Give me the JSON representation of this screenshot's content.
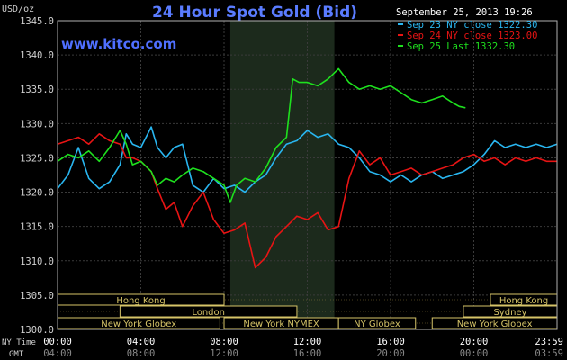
{
  "chart_data": {
    "type": "line",
    "title": "24 Hour Spot Gold (Bid)",
    "subtitle": "www.kitco.com",
    "ylabel": "USD/oz",
    "timestamp": "September 25, 2013 19:26",
    "ylim": [
      1300,
      1345
    ],
    "yticks": [
      "1300.0",
      "1305.0",
      "1310.0",
      "1315.0",
      "1320.0",
      "1325.0",
      "1330.0",
      "1335.0",
      "1340.0",
      "1345.0"
    ],
    "xlim": [
      0,
      24
    ],
    "xrow1_label": "NY Time",
    "xrow2_label": "GMT",
    "xticks_ny": [
      "00:00",
      "04:00",
      "08:00",
      "12:00",
      "16:00",
      "20:00",
      "23:59"
    ],
    "xticks_gmt": [
      "04:00",
      "08:00",
      "12:00",
      "16:00",
      "20:00",
      "00:00",
      "03:59"
    ],
    "highlight_band": [
      8.3,
      13.3
    ],
    "series": [
      {
        "name": "Sep 23 NY close 1322.30",
        "color": "#29b6f0",
        "x": [
          0,
          0.5,
          1,
          1.5,
          2,
          2.5,
          3,
          3.3,
          3.6,
          4,
          4.5,
          4.8,
          5.2,
          5.6,
          6,
          6.5,
          7,
          7.5,
          8,
          8.5,
          9,
          9.5,
          10,
          10.5,
          11,
          11.5,
          12,
          12.5,
          13,
          13.5,
          14,
          14.5,
          15,
          15.5,
          16,
          16.5,
          17,
          17.5,
          18,
          18.5,
          19,
          19.5,
          20,
          20.5,
          21,
          21.5,
          22,
          22.5,
          23,
          23.5,
          24
        ],
        "y": [
          1320.5,
          1322.5,
          1326.5,
          1322.0,
          1320.5,
          1321.5,
          1324.0,
          1328.5,
          1327.0,
          1326.5,
          1329.5,
          1326.5,
          1325.0,
          1326.5,
          1327.0,
          1321.0,
          1320.0,
          1322.0,
          1320.5,
          1321.0,
          1320.0,
          1321.5,
          1322.5,
          1325.0,
          1327.0,
          1327.5,
          1329.0,
          1328.0,
          1328.5,
          1327.0,
          1326.5,
          1325.0,
          1323.0,
          1322.5,
          1321.5,
          1322.5,
          1321.5,
          1322.5,
          1323.0,
          1322.0,
          1322.5,
          1323.0,
          1324.0,
          1325.5,
          1327.5,
          1326.5,
          1327.0,
          1326.5,
          1327.0,
          1326.5,
          1327.0
        ]
      },
      {
        "name": "Sep 24 NY close 1323.00",
        "color": "#e81414",
        "x": [
          0,
          0.5,
          1,
          1.5,
          2,
          2.5,
          3,
          3.3,
          3.6,
          4,
          4.5,
          4.8,
          5.2,
          5.6,
          6,
          6.5,
          7,
          7.5,
          8,
          8.5,
          9,
          9.5,
          10,
          10.5,
          11,
          11.5,
          12,
          12.5,
          13,
          13.5,
          14,
          14.5,
          15,
          15.5,
          16,
          16.5,
          17,
          17.5,
          18,
          18.5,
          19,
          19.5,
          20,
          20.5,
          21,
          21.5,
          22,
          22.5,
          23,
          23.5,
          24
        ],
        "y": [
          1327.0,
          1327.5,
          1328.0,
          1327.0,
          1328.5,
          1327.5,
          1327.0,
          1325.0,
          1325.0,
          1324.5,
          1323.0,
          1320.5,
          1317.5,
          1318.5,
          1315.0,
          1318.0,
          1320.0,
          1316.0,
          1314.0,
          1314.5,
          1315.5,
          1309.0,
          1310.5,
          1313.5,
          1315.0,
          1316.5,
          1316.0,
          1317.0,
          1314.5,
          1315.0,
          1322.0,
          1326.0,
          1324.0,
          1325.0,
          1322.5,
          1323.0,
          1323.5,
          1322.5,
          1323.0,
          1323.5,
          1324.0,
          1325.0,
          1325.5,
          1324.5,
          1325.0,
          1324.0,
          1325.0,
          1324.5,
          1325.0,
          1324.5,
          1324.5
        ]
      },
      {
        "name": "Sep 25 Last 1332.30",
        "color": "#1ee01e",
        "x": [
          0,
          0.5,
          1,
          1.5,
          2,
          2.5,
          3,
          3.3,
          3.6,
          4,
          4.5,
          4.8,
          5.2,
          5.6,
          6,
          6.5,
          7,
          7.5,
          8,
          8.3,
          8.6,
          9,
          9.5,
          10,
          10.5,
          11,
          11.3,
          11.6,
          12,
          12.5,
          13,
          13.5,
          14,
          14.5,
          15,
          15.5,
          16,
          16.5,
          17,
          17.5,
          18,
          18.5,
          19,
          19.3,
          19.6
        ],
        "y": [
          1324.5,
          1325.5,
          1325.0,
          1326.0,
          1324.5,
          1326.5,
          1329.0,
          1327.0,
          1324.0,
          1324.5,
          1323.0,
          1321.0,
          1322.0,
          1321.5,
          1322.5,
          1323.5,
          1323.0,
          1322.0,
          1321.0,
          1318.5,
          1321.0,
          1322.0,
          1321.5,
          1323.5,
          1326.5,
          1328.0,
          1336.5,
          1336.0,
          1336.0,
          1335.5,
          1336.5,
          1338.0,
          1336.0,
          1335.0,
          1335.5,
          1335.0,
          1335.5,
          1334.5,
          1333.5,
          1333.0,
          1333.5,
          1334.0,
          1333.0,
          1332.5,
          1332.3
        ]
      }
    ],
    "sessions": {
      "row1": [
        {
          "label": "Hong Kong",
          "start": 0,
          "end": 8.0
        },
        {
          "label": "Hong Kong",
          "start": 20.8,
          "end": 24
        }
      ],
      "row2": [
        {
          "label": "London",
          "start": 3.0,
          "end": 11.5
        },
        {
          "label": "Sydney",
          "start": 19.5,
          "end": 24
        }
      ],
      "row3": [
        {
          "label": "New York Globex",
          "start": 0,
          "end": 7.8
        },
        {
          "label": "New York NYMEX",
          "start": 8.0,
          "end": 13.5
        },
        {
          "label": "NY Globex",
          "start": 13.5,
          "end": 17.2
        },
        {
          "label": "New York Globex",
          "start": 18.0,
          "end": 24
        }
      ]
    }
  }
}
